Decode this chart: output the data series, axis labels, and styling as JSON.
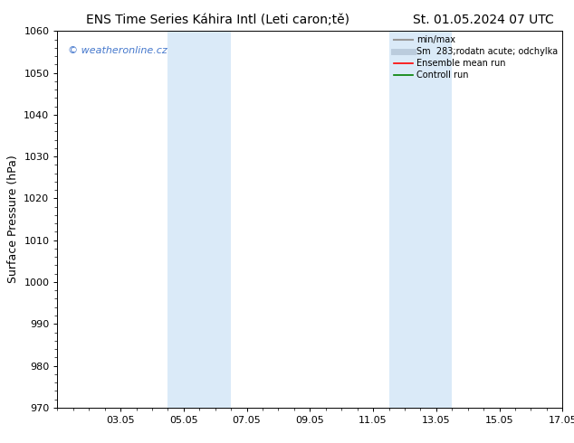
{
  "title_left": "ENS Time Series Káhira Intl (Leti caron;tě)",
  "title_right": "St. 01.05.2024 07 UTC",
  "ylabel": "Surface Pressure (hPa)",
  "ylim": [
    970,
    1060
  ],
  "yticks": [
    970,
    980,
    990,
    1000,
    1010,
    1020,
    1030,
    1040,
    1050,
    1060
  ],
  "xtick_labels": [
    "03.05",
    "05.05",
    "07.05",
    "09.05",
    "11.05",
    "13.05",
    "15.05",
    "17.05"
  ],
  "xtick_positions": [
    2,
    4,
    6,
    8,
    10,
    12,
    14,
    16
  ],
  "xlim": [
    0,
    16
  ],
  "shaded_regions": [
    {
      "x_start": 3.5,
      "x_end": 5.5,
      "color": "#daeaf8"
    },
    {
      "x_start": 10.5,
      "x_end": 12.5,
      "color": "#daeaf8"
    }
  ],
  "watermark_text": "© weatheronline.cz",
  "watermark_color": "#4477cc",
  "legend_entries": [
    {
      "label": "min/max",
      "color": "#999999",
      "lw": 1.5
    },
    {
      "label": "Sm  283;rodatn acute; odchylka",
      "color": "#bbccdd",
      "lw": 5
    },
    {
      "label": "Ensemble mean run",
      "color": "red",
      "lw": 1.2
    },
    {
      "label": "Controll run",
      "color": "green",
      "lw": 1.2
    }
  ],
  "bg_color": "#ffffff",
  "plot_bg_color": "#ffffff",
  "title_fontsize": 10,
  "tick_fontsize": 8,
  "ylabel_fontsize": 9
}
